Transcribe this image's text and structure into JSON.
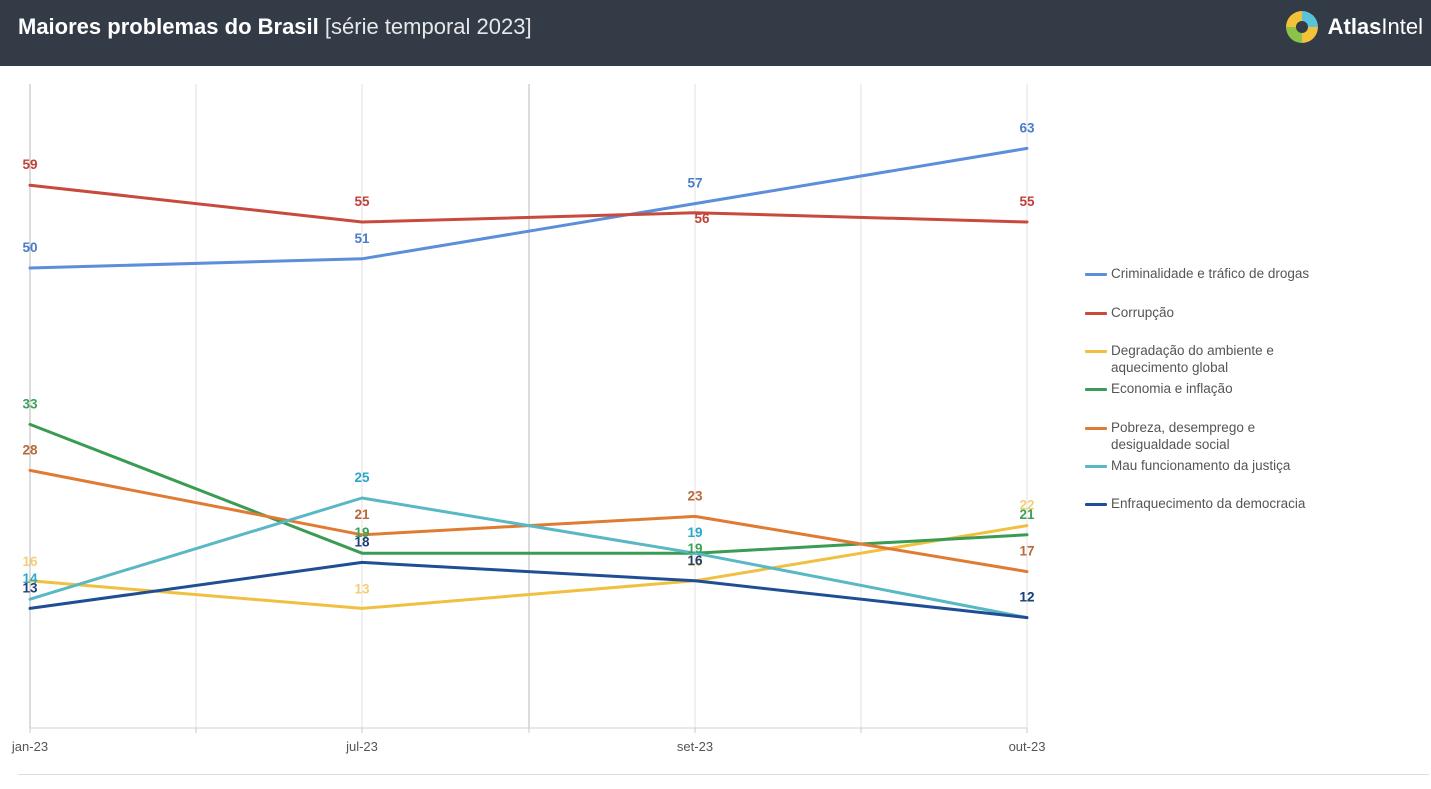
{
  "header": {
    "title_bold": "Maiores problemas do Brasil",
    "title_light": "[série temporal 2023]",
    "logo_bold": "Atlas",
    "logo_light": "Intel",
    "colors": {
      "background": "#333b47",
      "text": "#ffffff"
    }
  },
  "logo_icon": "atlasintel-logo-icon",
  "chart_data": {
    "type": "line",
    "x": [
      "jan-23",
      "jul-23",
      "set-23",
      "out-23"
    ],
    "ylim": [
      0,
      70
    ],
    "grid": true,
    "legend_position": "right",
    "series": [
      {
        "name": "Criminalidade e tráfico de drogas",
        "color": "#5b8fd9",
        "values": [
          50,
          51,
          57,
          63
        ]
      },
      {
        "name": "Corrupção",
        "color": "#c8493e",
        "values": [
          59,
          55,
          56,
          55
        ]
      },
      {
        "name": "Degradação do ambiente e aquecimento global",
        "color": "#f0c040",
        "values": [
          16,
          13,
          16,
          22
        ]
      },
      {
        "name": "Economia e inflação",
        "color": "#3a9b52",
        "values": [
          33,
          19,
          19,
          21
        ]
      },
      {
        "name": "Pobreza, desemprego e desigualdade social",
        "color": "#e07b33",
        "values": [
          28,
          21,
          23,
          17
        ]
      },
      {
        "name": "Mau funcionamento da justiça",
        "color": "#5ab8c4",
        "values": [
          14,
          25,
          19,
          12
        ]
      },
      {
        "name": "Enfraquecimento da democracia",
        "color": "#1f4e94",
        "values": [
          13,
          18,
          16,
          12
        ]
      }
    ],
    "data_labels": [
      {
        "series": 0,
        "values": [
          "50",
          "51",
          "57",
          "63"
        ],
        "colors": [
          "#4a7cc9",
          "#4a7cc9",
          "#4a7cc9",
          "#4a7cc9"
        ]
      },
      {
        "series": 1,
        "values": [
          "59",
          "55",
          "56",
          "55"
        ],
        "colors": [
          "#c0413a",
          "#c0413a",
          "#c0413a",
          "#c0413a"
        ]
      },
      {
        "series": 2,
        "values": [
          "16",
          "13",
          "16",
          "22"
        ],
        "colors": [
          "#f3cf7a",
          "#f3cf7a",
          "#f3cf7a",
          "#f3cf7a"
        ]
      },
      {
        "series": 3,
        "values": [
          "33",
          "19",
          "19",
          "21"
        ],
        "colors": [
          "#3aa15a",
          "#3aa15a",
          "#3aa15a",
          "#3aa15a"
        ]
      },
      {
        "series": 4,
        "values": [
          "28",
          "21",
          "23",
          "17"
        ],
        "colors": [
          "#b8693a",
          "#b8693a",
          "#b8693a",
          "#b8693a"
        ]
      },
      {
        "series": 5,
        "values": [
          "14",
          "25",
          "19",
          "12"
        ],
        "colors": [
          "#2aa7c9",
          "#2aa7c9",
          "#2aa7c9",
          "#2aa7c9"
        ]
      },
      {
        "series": 6,
        "values": [
          "13",
          "18",
          "16",
          "12"
        ],
        "colors": [
          "#1f3f78",
          "#1f3f78",
          "#1f3f78",
          "#1f3f78"
        ]
      }
    ]
  }
}
